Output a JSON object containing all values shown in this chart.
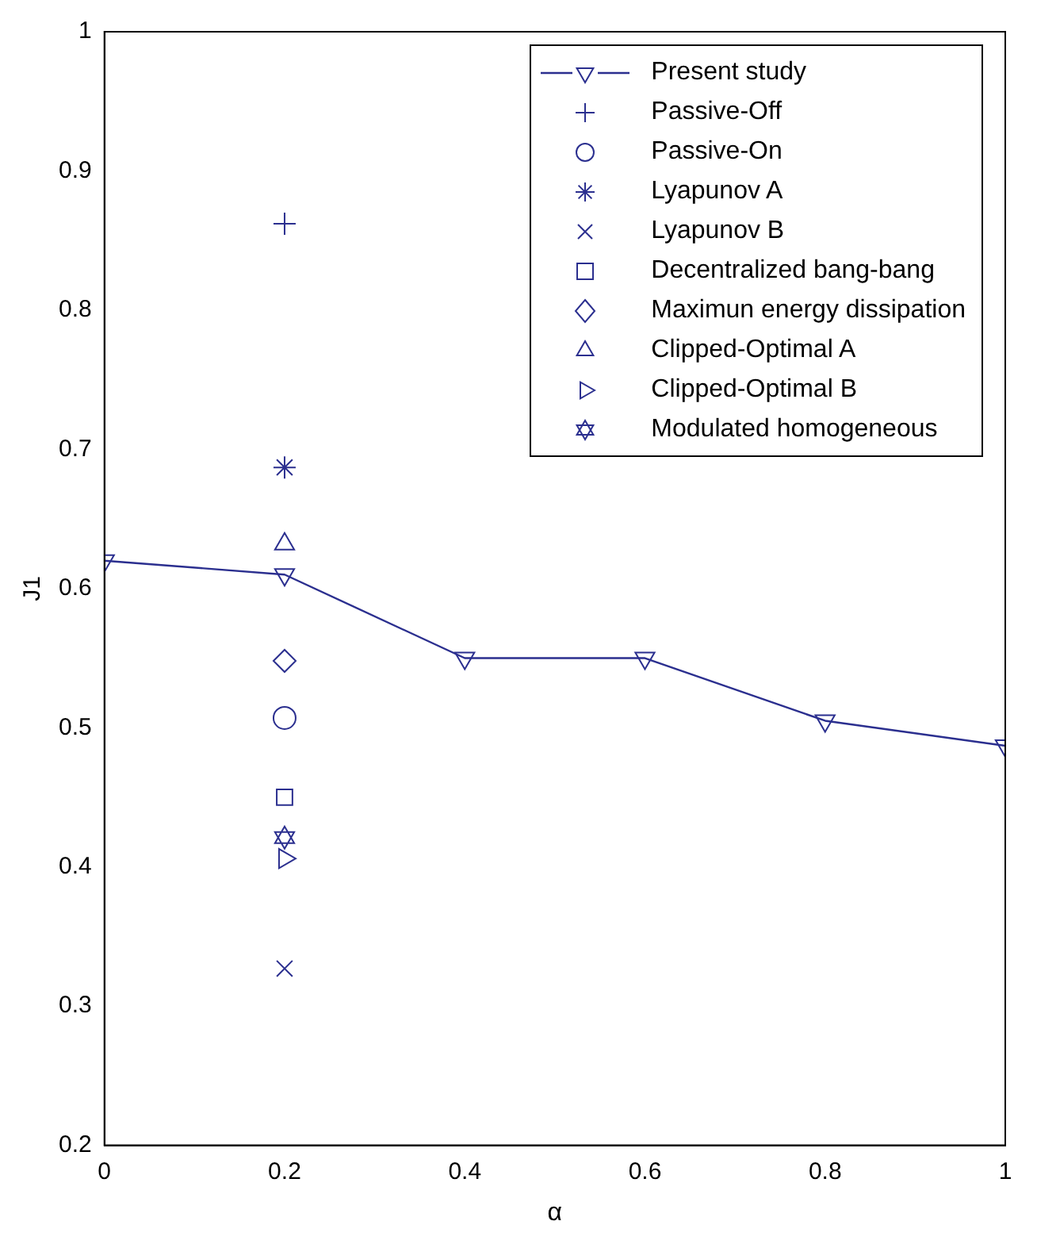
{
  "chart_data": {
    "type": "scatter",
    "xlabel": "α",
    "ylabel": "J1",
    "xlim": [
      0,
      1
    ],
    "xticks": [
      0,
      0.2,
      0.4,
      0.6,
      0.8,
      1
    ],
    "ylim": [
      0.2,
      1
    ],
    "yticks": [
      0.2,
      0.3,
      0.4,
      0.5,
      0.6,
      0.7,
      0.8,
      0.9,
      1
    ],
    "grid": false,
    "legend": "top right",
    "series": [
      {
        "name": "Present study",
        "type": "line",
        "marker": "triangle-down",
        "line_style": "solid",
        "color": "#2b2f8f",
        "x": [
          0,
          0.2,
          0.4,
          0.6,
          0.8,
          1
        ],
        "values": [
          0.62,
          0.61,
          0.55,
          0.55,
          0.505,
          0.487
        ]
      },
      {
        "name": "Passive-Off",
        "type": "scatter",
        "marker": "plus",
        "color": "#2b2f8f",
        "x": [
          0.2
        ],
        "values": [
          0.862
        ]
      },
      {
        "name": "Passive-On",
        "type": "scatter",
        "marker": "circle",
        "color": "#2b2f8f",
        "x": [
          0.2
        ],
        "values": [
          0.507
        ]
      },
      {
        "name": "Lyapunov A",
        "type": "scatter",
        "marker": "cross",
        "color": "#2b2f8f",
        "x": [
          0.2
        ],
        "values": [
          0.687
        ]
      },
      {
        "name": "Lyapunov B",
        "type": "scatter",
        "marker": "x",
        "color": "#2b2f8f",
        "x": [
          0.2
        ],
        "values": [
          0.327
        ]
      },
      {
        "name": "Decentralized bang-bang",
        "type": "scatter",
        "marker": "square",
        "color": "#2b2f8f",
        "x": [
          0.2
        ],
        "values": [
          0.45
        ]
      },
      {
        "name": "Maximun energy dissipation",
        "type": "scatter",
        "marker": "diamond",
        "color": "#2b2f8f",
        "x": [
          0.2
        ],
        "values": [
          0.548
        ]
      },
      {
        "name": "Clipped-Optimal A",
        "type": "scatter",
        "marker": "triangle",
        "color": "#2b2f8f",
        "x": [
          0.2
        ],
        "values": [
          0.632
        ]
      },
      {
        "name": "Clipped-Optimal B",
        "type": "scatter",
        "marker": "triangle-right",
        "color": "#2b2f8f",
        "x": [
          0.2
        ],
        "values": [
          0.406
        ]
      },
      {
        "name": "Modulated homogeneous",
        "type": "scatter",
        "marker": "star",
        "color": "#2b2f8f",
        "x": [
          0.2
        ],
        "values": [
          0.421
        ]
      }
    ]
  }
}
